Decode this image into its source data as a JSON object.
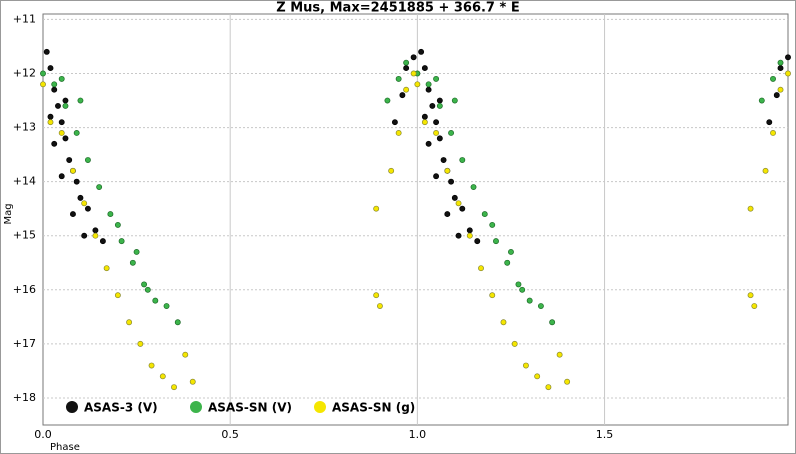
{
  "chart_data": {
    "type": "scatter",
    "title": "Z Mus, Max=2451885 + 366.7 * E",
    "x_label": "Phase",
    "y_label": "Mag",
    "xlim": [
      0,
      1.99
    ],
    "ylim": [
      18.5,
      10.9
    ],
    "xticks": [
      {
        "value": 0,
        "label": "0.0"
      },
      0.5,
      {
        "value": 1,
        "label": "1.0"
      },
      1.5
    ],
    "yticks": [
      {
        "value": 11,
        "label": "+11"
      },
      {
        "value": 12,
        "label": "+12"
      },
      {
        "value": 13,
        "label": "+13"
      },
      {
        "value": 14,
        "label": "+14"
      },
      {
        "value": 15,
        "label": "+15"
      },
      {
        "value": 16,
        "label": "+16"
      },
      {
        "value": 17,
        "label": "+17"
      },
      {
        "value": 18,
        "label": "+18"
      }
    ],
    "grid": true,
    "legend": "bottom-left",
    "series": [
      {
        "name": "ASAS-3 (V)",
        "color": "#111111",
        "x": [
          0.01,
          0.02,
          0.03,
          0.04,
          0.05,
          0.06,
          0.07,
          0.08,
          0.09,
          0.1,
          0.12,
          0.14,
          0.03,
          0.05,
          0.08,
          0.11,
          0.16,
          0.02,
          0.06,
          0.94,
          0.96,
          0.97,
          0.99,
          1.01,
          1.02,
          1.03,
          1.04,
          1.05,
          1.06,
          1.07,
          1.08,
          1.09,
          1.1,
          1.12,
          1.14,
          1.03,
          1.05,
          1.08,
          1.11,
          1.16,
          1.02,
          1.06,
          1.94,
          1.96,
          1.97,
          1.99
        ],
        "values": [
          11.6,
          11.9,
          12.3,
          12.6,
          12.9,
          13.2,
          13.6,
          13.8,
          14.0,
          14.3,
          14.5,
          14.9,
          13.3,
          13.9,
          14.6,
          15.0,
          15.1,
          12.8,
          12.5,
          12.9,
          12.4,
          11.9,
          11.7,
          11.6,
          11.9,
          12.3,
          12.6,
          12.9,
          13.2,
          13.6,
          13.8,
          14.0,
          14.3,
          14.5,
          14.9,
          13.3,
          13.9,
          14.6,
          15.0,
          15.1,
          12.8,
          12.5,
          12.9,
          12.4,
          11.9,
          11.7
        ]
      },
      {
        "name": "ASAS-SN (V)",
        "color": "#3cb44b",
        "x": [
          0.0,
          0.03,
          0.06,
          0.09,
          0.12,
          0.15,
          0.18,
          0.21,
          0.24,
          0.27,
          0.3,
          0.33,
          0.36,
          0.05,
          0.1,
          0.2,
          0.25,
          0.28,
          0.92,
          0.95,
          0.97,
          1.0,
          1.03,
          1.06,
          1.09,
          1.12,
          1.15,
          1.18,
          1.21,
          1.24,
          1.27,
          1.3,
          1.33,
          1.36,
          1.05,
          1.1,
          1.2,
          1.25,
          1.28,
          1.92,
          1.95,
          1.97
        ],
        "values": [
          12.0,
          12.2,
          12.6,
          13.1,
          13.6,
          14.1,
          14.6,
          15.1,
          15.5,
          15.9,
          16.2,
          16.3,
          16.6,
          12.1,
          12.5,
          14.8,
          15.3,
          16.0,
          12.5,
          12.1,
          11.8,
          12.0,
          12.2,
          12.6,
          13.1,
          13.6,
          14.1,
          14.6,
          15.1,
          15.5,
          15.9,
          16.2,
          16.3,
          16.6,
          12.1,
          12.5,
          14.8,
          15.3,
          16.0,
          12.5,
          12.1,
          11.8
        ]
      },
      {
        "name": "ASAS-SN (g)",
        "color": "#f5e600",
        "x": [
          0.0,
          0.02,
          0.05,
          0.08,
          0.11,
          0.14,
          0.17,
          0.2,
          0.23,
          0.26,
          0.29,
          0.32,
          0.35,
          0.38,
          0.4,
          0.89,
          0.89,
          0.9,
          0.93,
          0.95,
          0.97,
          0.99,
          1.0,
          1.02,
          1.05,
          1.08,
          1.11,
          1.14,
          1.17,
          1.2,
          1.23,
          1.26,
          1.29,
          1.32,
          1.35,
          1.38,
          1.4,
          1.89,
          1.89,
          1.9,
          1.93,
          1.95,
          1.97,
          1.99
        ],
        "values": [
          12.2,
          12.9,
          13.1,
          13.8,
          14.4,
          15.0,
          15.6,
          16.1,
          16.6,
          17.0,
          17.4,
          17.6,
          17.8,
          17.2,
          17.7,
          14.5,
          16.1,
          16.3,
          13.8,
          13.1,
          12.3,
          12.0,
          12.2,
          12.9,
          13.1,
          13.8,
          14.4,
          15.0,
          15.6,
          16.1,
          16.6,
          17.0,
          17.4,
          17.6,
          17.8,
          17.2,
          17.7,
          14.5,
          16.1,
          16.3,
          13.8,
          13.1,
          12.3,
          12.0
        ]
      }
    ]
  }
}
